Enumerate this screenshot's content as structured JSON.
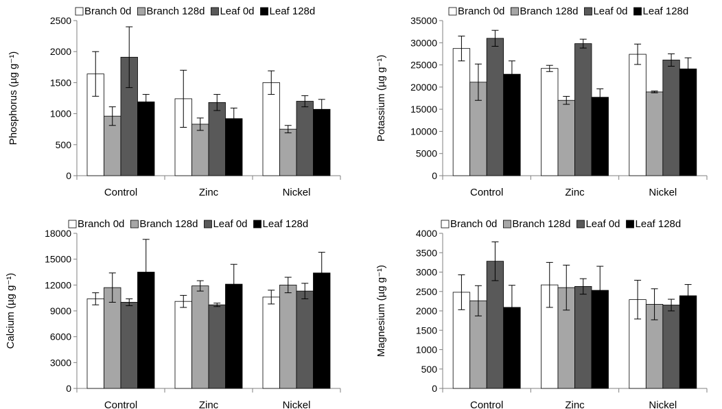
{
  "figure": {
    "categories": [
      "Control",
      "Zinc",
      "Nickel"
    ],
    "colors": {
      "Branch 0d": "#ffffff",
      "Branch 128d": "#a6a6a6",
      "Leaf 0d": "#595959",
      "Leaf 128d": "#000000"
    }
  },
  "chart_data": [
    {
      "type": "bar",
      "ylabel": "Phosphorus (µg g⁻¹)",
      "ylim": [
        0,
        2500
      ],
      "yticks": [
        0,
        500,
        1000,
        1500,
        2000,
        2500
      ],
      "categories": [
        "Control",
        "Zinc",
        "Nickel"
      ],
      "legend": "top",
      "grid": false,
      "series": [
        {
          "name": "Branch 0d",
          "values": [
            1640,
            1240,
            1500
          ],
          "errors": [
            360,
            460,
            190
          ]
        },
        {
          "name": "Branch 128d",
          "values": [
            960,
            830,
            750
          ],
          "errors": [
            150,
            100,
            60
          ]
        },
        {
          "name": "Leaf 0d",
          "values": [
            1910,
            1180,
            1200
          ],
          "errors": [
            490,
            130,
            90
          ]
        },
        {
          "name": "Leaf 128d",
          "values": [
            1190,
            920,
            1070
          ],
          "errors": [
            120,
            170,
            160
          ]
        }
      ]
    },
    {
      "type": "bar",
      "ylabel": "Potassium (µg g⁻¹)",
      "ylim": [
        0,
        35000
      ],
      "yticks": [
        0,
        5000,
        10000,
        15000,
        20000,
        25000,
        30000,
        35000
      ],
      "categories": [
        "Control",
        "Zinc",
        "Nickel"
      ],
      "legend": "top",
      "grid": false,
      "series": [
        {
          "name": "Branch 0d",
          "values": [
            28700,
            24200,
            27400
          ],
          "errors": [
            2800,
            700,
            2300
          ]
        },
        {
          "name": "Branch 128d",
          "values": [
            21100,
            17000,
            18900
          ],
          "errors": [
            4100,
            900,
            200
          ]
        },
        {
          "name": "Leaf 0d",
          "values": [
            31000,
            29800,
            26100
          ],
          "errors": [
            1800,
            1000,
            1400
          ]
        },
        {
          "name": "Leaf 128d",
          "values": [
            22900,
            17700,
            24100
          ],
          "errors": [
            3000,
            1900,
            2500
          ]
        }
      ]
    },
    {
      "type": "bar",
      "ylabel": "Calcium (µg g⁻¹)",
      "ylim": [
        0,
        18000
      ],
      "yticks": [
        0,
        3000,
        6000,
        9000,
        12000,
        15000,
        18000
      ],
      "categories": [
        "Control",
        "Zinc",
        "Nickel"
      ],
      "legend": "top",
      "grid": false,
      "series": [
        {
          "name": "Branch 0d",
          "values": [
            10400,
            10100,
            10600
          ],
          "errors": [
            700,
            700,
            800
          ]
        },
        {
          "name": "Branch 128d",
          "values": [
            11700,
            11900,
            12000
          ],
          "errors": [
            1700,
            600,
            900
          ]
        },
        {
          "name": "Leaf 0d",
          "values": [
            10000,
            9700,
            11300
          ],
          "errors": [
            400,
            200,
            900
          ]
        },
        {
          "name": "Leaf 128d",
          "values": [
            13500,
            12100,
            13400
          ],
          "errors": [
            3800,
            2300,
            2400
          ]
        }
      ]
    },
    {
      "type": "bar",
      "ylabel": "Magnesium (µg g⁻¹)",
      "ylim": [
        0,
        4000
      ],
      "yticks": [
        0,
        500,
        1000,
        1500,
        2000,
        2500,
        3000,
        3500,
        4000
      ],
      "categories": [
        "Control",
        "Zinc",
        "Nickel"
      ],
      "legend": "top",
      "grid": false,
      "series": [
        {
          "name": "Branch 0d",
          "values": [
            2480,
            2670,
            2290
          ],
          "errors": [
            450,
            580,
            500
          ]
        },
        {
          "name": "Branch 128d",
          "values": [
            2260,
            2600,
            2170
          ],
          "errors": [
            390,
            580,
            400
          ]
        },
        {
          "name": "Leaf 0d",
          "values": [
            3280,
            2630,
            2150
          ],
          "errors": [
            500,
            200,
            150
          ]
        },
        {
          "name": "Leaf 128d",
          "values": [
            2090,
            2530,
            2390
          ],
          "errors": [
            570,
            620,
            290
          ]
        }
      ]
    }
  ]
}
